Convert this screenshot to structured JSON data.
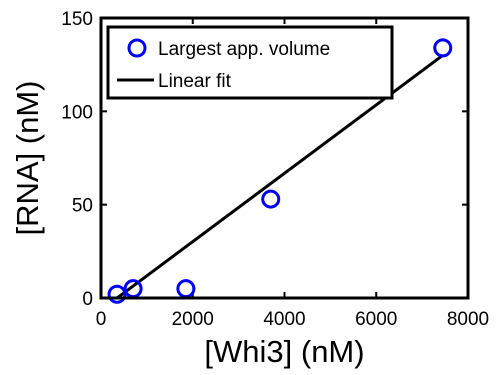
{
  "chart_data": {
    "type": "scatter",
    "title": "",
    "xlabel": "[Whi3] (nM)",
    "ylabel": "[RNA] (nM)",
    "xlim": [
      0,
      8000
    ],
    "ylim": [
      0,
      150
    ],
    "xticks": [
      0,
      2000,
      4000,
      6000,
      8000
    ],
    "yticks": [
      0,
      50,
      100,
      150
    ],
    "xtick_labels": [
      "0",
      "2000",
      "4000",
      "6000",
      "8000"
    ],
    "ytick_labels": [
      "0",
      "50",
      "100",
      "150"
    ],
    "grid": false,
    "legend_position": "top-left",
    "series": [
      {
        "name": "Largest app. volume",
        "kind": "scatter",
        "marker": "open-circle",
        "color": "#0000ff",
        "x": [
          350,
          700,
          1850,
          3700,
          7450
        ],
        "y": [
          2,
          5,
          5,
          53,
          134
        ]
      },
      {
        "name": "Linear fit",
        "kind": "line",
        "color": "#000000",
        "x": [
          350,
          7450
        ],
        "y": [
          0,
          130
        ]
      }
    ]
  }
}
